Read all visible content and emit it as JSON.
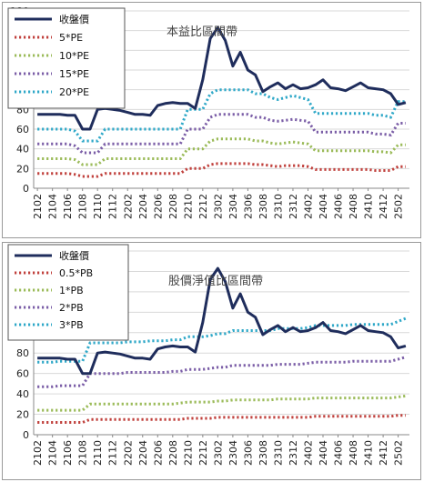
{
  "chart_data": [
    {
      "type": "line",
      "title": "本益比區間帶",
      "xlabel": "",
      "ylabel": "",
      "ylim": [
        0,
        180
      ],
      "yticks": [
        0,
        20,
        40,
        60,
        80,
        100,
        120,
        140,
        160,
        180
      ],
      "grid": "horizontal",
      "legend": "top-left",
      "xtick_labels": [
        "2102",
        "2104",
        "2106",
        "2108",
        "2110",
        "2112",
        "2202",
        "2204",
        "2206",
        "2208",
        "2210",
        "2212",
        "2302",
        "2304",
        "2306",
        "2308",
        "2310",
        "2312",
        "2402",
        "2404",
        "2406",
        "2408",
        "2410",
        "2412",
        "2502"
      ],
      "series": [
        {
          "name": "收盤價",
          "style": "solid",
          "color": "#1f2d5c",
          "values": [
            75,
            75,
            75,
            75,
            74,
            74,
            60,
            60,
            80,
            81,
            80,
            79,
            77,
            75,
            75,
            74,
            84,
            86,
            87,
            86,
            86,
            81,
            110,
            152,
            163,
            150,
            124,
            138,
            120,
            115,
            98,
            103,
            107,
            101,
            105,
            101,
            102,
            105,
            110,
            102,
            101,
            99,
            103,
            107,
            102,
            101,
            100,
            96,
            85,
            87
          ]
        },
        {
          "name": "5*PE",
          "style": "dotted",
          "color": "#c0403c",
          "values": [
            15,
            15,
            15,
            15,
            15,
            14,
            12,
            12,
            12,
            15,
            15,
            15,
            15,
            15,
            15,
            15,
            15,
            15,
            15,
            15,
            20,
            20,
            20,
            24,
            25,
            25,
            25,
            25,
            25,
            24,
            24,
            23,
            22,
            23,
            23,
            23,
            22,
            19,
            19,
            19,
            19,
            19,
            19,
            19,
            19,
            18,
            18,
            18,
            22,
            22
          ]
        },
        {
          "name": "10*PE",
          "style": "dotted",
          "color": "#9bbb59",
          "values": [
            30,
            30,
            30,
            30,
            30,
            29,
            24,
            24,
            24,
            30,
            30,
            30,
            30,
            30,
            30,
            30,
            30,
            30,
            30,
            30,
            40,
            40,
            40,
            48,
            50,
            50,
            50,
            50,
            50,
            48,
            48,
            46,
            45,
            46,
            47,
            46,
            45,
            38,
            38,
            38,
            38,
            38,
            38,
            38,
            38,
            37,
            37,
            36,
            44,
            44
          ]
        },
        {
          "name": "15*PE",
          "style": "dotted",
          "color": "#7b5ea7",
          "values": [
            45,
            45,
            45,
            45,
            45,
            43,
            36,
            36,
            36,
            45,
            45,
            45,
            45,
            45,
            45,
            45,
            45,
            45,
            45,
            45,
            60,
            60,
            60,
            72,
            75,
            75,
            75,
            75,
            75,
            72,
            72,
            69,
            68,
            69,
            70,
            69,
            68,
            57,
            57,
            57,
            57,
            57,
            57,
            57,
            57,
            55,
            55,
            54,
            66,
            66
          ]
        },
        {
          "name": "20*PE",
          "style": "dotted",
          "color": "#2fa8c8",
          "values": [
            60,
            60,
            60,
            60,
            60,
            58,
            48,
            48,
            48,
            60,
            60,
            60,
            60,
            60,
            60,
            60,
            60,
            60,
            60,
            60,
            80,
            80,
            80,
            96,
            100,
            100,
            100,
            100,
            100,
            96,
            96,
            92,
            90,
            92,
            94,
            92,
            90,
            76,
            76,
            76,
            76,
            76,
            76,
            76,
            76,
            74,
            74,
            72,
            88,
            88
          ]
        }
      ]
    },
    {
      "type": "line",
      "title": "股價淨值比區間帶",
      "xlabel": "",
      "ylabel": "",
      "ylim": [
        0,
        180
      ],
      "yticks": [
        0,
        20,
        40,
        60,
        80,
        100,
        120,
        140,
        160,
        180
      ],
      "grid": "horizontal",
      "legend": "top-left",
      "xtick_labels": [
        "2102",
        "2104",
        "2106",
        "2108",
        "2110",
        "2112",
        "2202",
        "2204",
        "2206",
        "2208",
        "2210",
        "2212",
        "2302",
        "2304",
        "2306",
        "2308",
        "2310",
        "2312",
        "2402",
        "2404",
        "2406",
        "2408",
        "2410",
        "2412",
        "2502"
      ],
      "series": [
        {
          "name": "收盤價",
          "style": "solid",
          "color": "#1f2d5c",
          "values": [
            75,
            75,
            75,
            75,
            74,
            74,
            60,
            60,
            80,
            81,
            80,
            79,
            77,
            75,
            75,
            74,
            84,
            86,
            87,
            86,
            86,
            81,
            110,
            152,
            163,
            150,
            124,
            138,
            120,
            115,
            98,
            103,
            107,
            101,
            105,
            101,
            102,
            105,
            110,
            102,
            101,
            99,
            103,
            107,
            102,
            101,
            100,
            96,
            85,
            87
          ]
        },
        {
          "name": "0.5*PB",
          "style": "dotted",
          "color": "#c0403c",
          "values": [
            12,
            12,
            12,
            12,
            12,
            12,
            12,
            15,
            15,
            15,
            15,
            15,
            15,
            15,
            15,
            15,
            15,
            15,
            15,
            15,
            16,
            16,
            16,
            16,
            17,
            17,
            17,
            17,
            17,
            17,
            17,
            17,
            17,
            17,
            17,
            17,
            17,
            18,
            18,
            18,
            18,
            18,
            18,
            18,
            18,
            18,
            18,
            18,
            19,
            19
          ]
        },
        {
          "name": "1*PB",
          "style": "dotted",
          "color": "#9bbb59",
          "values": [
            24,
            24,
            24,
            24,
            24,
            24,
            24,
            30,
            30,
            30,
            30,
            30,
            30,
            30,
            30,
            30,
            30,
            30,
            30,
            31,
            32,
            32,
            32,
            32,
            33,
            33,
            34,
            34,
            34,
            34,
            34,
            34,
            35,
            35,
            35,
            35,
            35,
            36,
            36,
            36,
            36,
            36,
            36,
            36,
            36,
            36,
            36,
            36,
            37,
            38
          ]
        },
        {
          "name": "2*PB",
          "style": "dotted",
          "color": "#7b5ea7",
          "values": [
            47,
            47,
            47,
            48,
            48,
            48,
            48,
            60,
            60,
            60,
            60,
            60,
            61,
            61,
            61,
            61,
            61,
            61,
            62,
            62,
            64,
            64,
            64,
            65,
            66,
            66,
            68,
            68,
            68,
            68,
            68,
            68,
            69,
            69,
            69,
            69,
            70,
            71,
            71,
            71,
            71,
            71,
            72,
            72,
            72,
            72,
            72,
            72,
            74,
            76
          ]
        },
        {
          "name": "3*PB",
          "style": "dotted",
          "color": "#2fa8c8",
          "values": [
            71,
            71,
            71,
            72,
            72,
            72,
            72,
            90,
            90,
            90,
            90,
            90,
            91,
            91,
            91,
            92,
            92,
            92,
            93,
            93,
            96,
            96,
            96,
            97,
            99,
            99,
            102,
            102,
            102,
            102,
            102,
            102,
            104,
            104,
            104,
            104,
            105,
            107,
            107,
            107,
            107,
            107,
            108,
            108,
            108,
            108,
            108,
            108,
            111,
            114
          ]
        }
      ]
    }
  ]
}
